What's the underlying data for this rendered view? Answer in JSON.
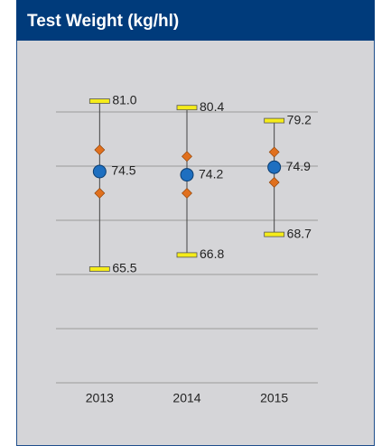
{
  "chart_data": {
    "type": "range",
    "title": "Test Weight (kg/hl)",
    "categories": [
      "2013",
      "2014",
      "2015"
    ],
    "max": [
      81.0,
      80.4,
      79.2
    ],
    "max_value_labels": [
      "81.0",
      "80.4",
      "79.2"
    ],
    "upper": [
      76.5,
      75.9,
      76.3
    ],
    "mean": [
      74.5,
      74.2,
      74.9
    ],
    "lower": [
      72.5,
      72.5,
      73.5
    ],
    "min": [
      65.5,
      66.8,
      68.7
    ],
    "ylim": [
      55,
      85
    ],
    "yticks": [
      55,
      60,
      65,
      70,
      75,
      80
    ],
    "grid": true,
    "cap_color": "#f5ec1a",
    "mean_color": "#1e6fc0",
    "diamond_color": "#e0701e"
  }
}
